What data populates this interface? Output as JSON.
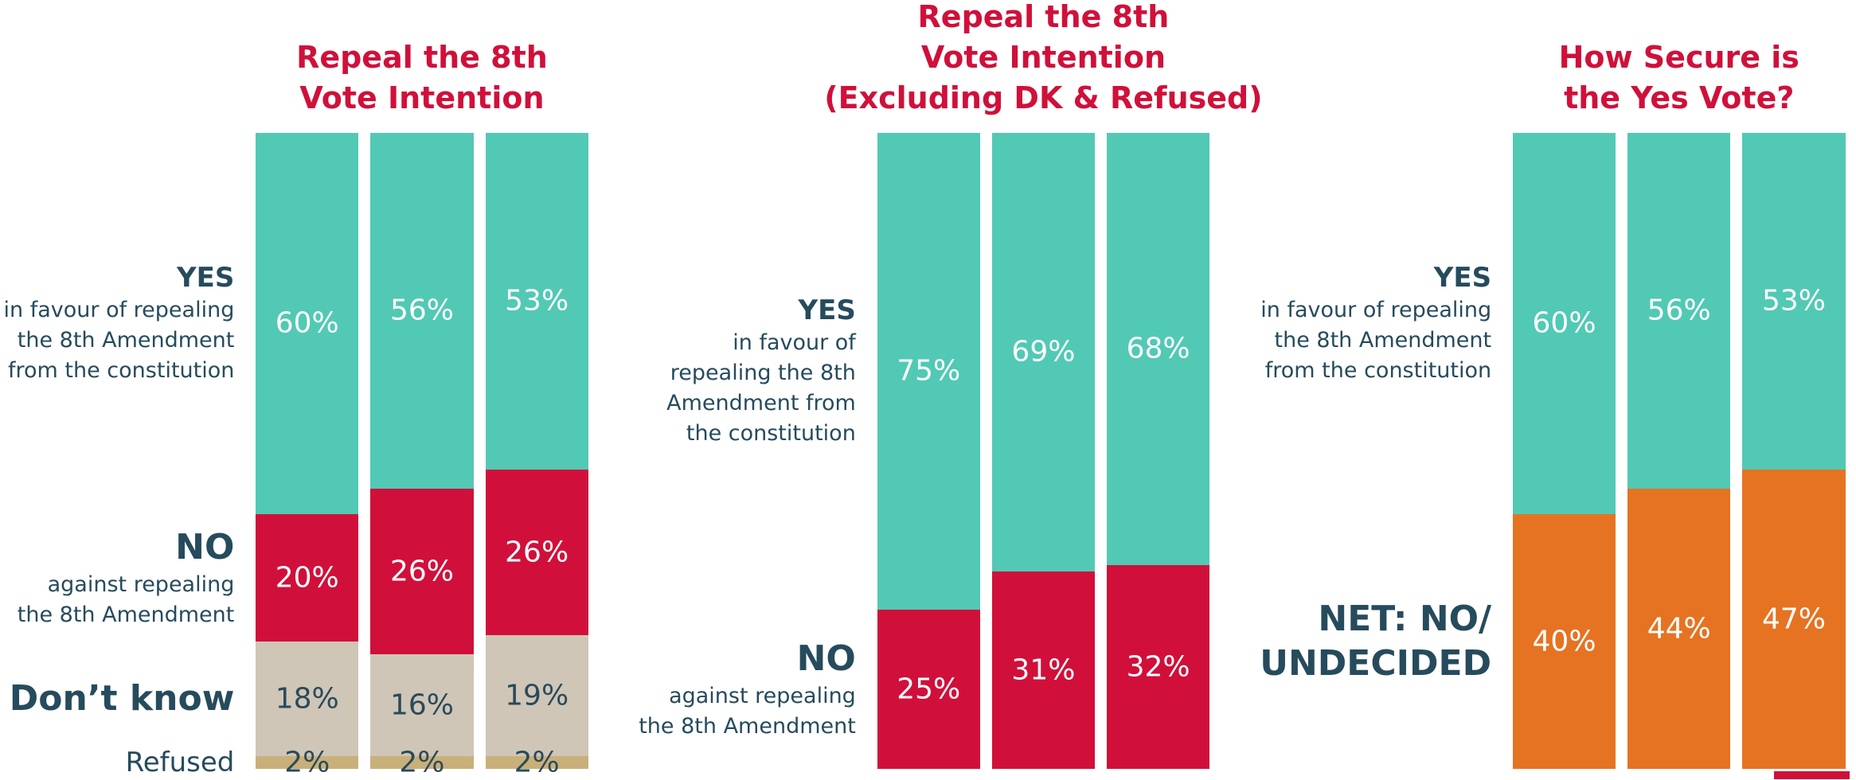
{
  "chart_data": [
    {
      "type": "bar",
      "stacked": true,
      "title": "Repeal the 8th\nVote Intention",
      "categories": [
        null,
        null,
        null
      ],
      "ylim": [
        0,
        100
      ],
      "series": [
        {
          "name": "YES",
          "description": "in favour of repealing\nthe 8th Amendment\nfrom the constitution",
          "color": "#52c9b4",
          "label_color": "#ffffff",
          "values": [
            60,
            56,
            53
          ],
          "value_labels": [
            "60%",
            "56%",
            "53%"
          ]
        },
        {
          "name": "NO",
          "description": "against repealing\nthe 8th Amendment",
          "color": "#d0103a",
          "label_color": "#ffffff",
          "values": [
            20,
            26,
            26
          ],
          "value_labels": [
            "20%",
            "26%",
            "26%"
          ]
        },
        {
          "name": "Don’t know",
          "color": "#cfc6b7",
          "label_color": "#2a4a5a",
          "values": [
            18,
            16,
            19
          ],
          "value_labels": [
            "18%",
            "16%",
            "19%"
          ]
        },
        {
          "name": "Refused",
          "color": "#c9b07a",
          "label_color": "#2a4a5a",
          "values": [
            2,
            2,
            2
          ],
          "value_labels": [
            "2%",
            "2%",
            "2%"
          ]
        }
      ]
    },
    {
      "type": "bar",
      "stacked": true,
      "title": "Repeal the 8th\nVote Intention\n(Excluding DK & Refused)",
      "categories": [
        null,
        null,
        null
      ],
      "ylim": [
        0,
        100
      ],
      "series": [
        {
          "name": "YES",
          "description": "in favour of\nrepealing the 8th\nAmendment from\nthe constitution",
          "color": "#52c9b4",
          "label_color": "#ffffff",
          "values": [
            75,
            69,
            68
          ],
          "value_labels": [
            "75%",
            "69%",
            "68%"
          ]
        },
        {
          "name": "NO",
          "description": "against repealing\nthe 8th Amendment",
          "color": "#d0103a",
          "label_color": "#ffffff",
          "values": [
            25,
            31,
            32
          ],
          "value_labels": [
            "25%",
            "31%",
            "32%"
          ]
        }
      ]
    },
    {
      "type": "bar",
      "stacked": true,
      "title": "How Secure is\nthe Yes Vote?",
      "categories": [
        null,
        null,
        null
      ],
      "ylim": [
        0,
        100
      ],
      "series": [
        {
          "name": "YES",
          "description": "in favour of repealing\nthe 8th Amendment\nfrom the constitution",
          "color": "#52c9b4",
          "label_color": "#ffffff",
          "values": [
            60,
            56,
            53
          ],
          "value_labels": [
            "60%",
            "56%",
            "53%"
          ]
        },
        {
          "name": "NET: NO/\nUNDECIDED",
          "color": "#e57322",
          "label_color": "#ffffff",
          "values": [
            40,
            44,
            47
          ],
          "value_labels": [
            "40%",
            "44%",
            "47%"
          ]
        }
      ]
    }
  ]
}
